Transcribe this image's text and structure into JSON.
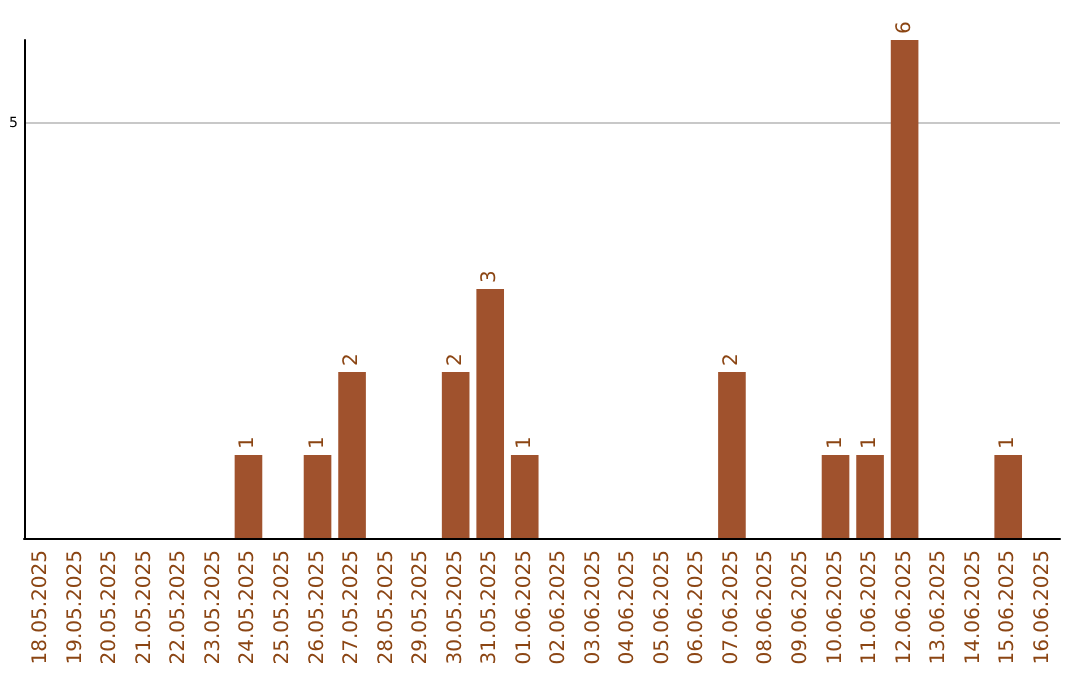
{
  "chart_data": {
    "type": "bar",
    "categories": [
      "18.05.2025",
      "19.05.2025",
      "20.05.2025",
      "21.05.2025",
      "22.05.2025",
      "23.05.2025",
      "24.05.2025",
      "25.05.2025",
      "26.05.2025",
      "27.05.2025",
      "28.05.2025",
      "29.05.2025",
      "30.05.2025",
      "31.05.2025",
      "01.06.2025",
      "02.06.2025",
      "03.06.2025",
      "04.06.2025",
      "05.06.2025",
      "06.06.2025",
      "07.06.2025",
      "08.06.2025",
      "09.06.2025",
      "10.06.2025",
      "11.06.2025",
      "12.06.2025",
      "13.06.2025",
      "14.06.2025",
      "15.06.2025",
      "16.06.2025"
    ],
    "values": [
      0,
      0,
      0,
      0,
      0,
      0,
      1,
      0,
      1,
      2,
      0,
      0,
      2,
      3,
      1,
      0,
      0,
      0,
      0,
      0,
      2,
      0,
      0,
      1,
      1,
      6,
      0,
      0,
      1,
      0
    ],
    "value_labels": [
      null,
      null,
      null,
      null,
      null,
      null,
      "1",
      null,
      "1",
      "2",
      null,
      null,
      "2",
      "3",
      "1",
      null,
      null,
      null,
      null,
      null,
      "2",
      null,
      null,
      "1",
      "1",
      "6",
      null,
      null,
      "1",
      null
    ],
    "color": "#a0522d",
    "ylim": [
      0,
      6
    ],
    "yticks": [
      5
    ],
    "grid": "y"
  }
}
